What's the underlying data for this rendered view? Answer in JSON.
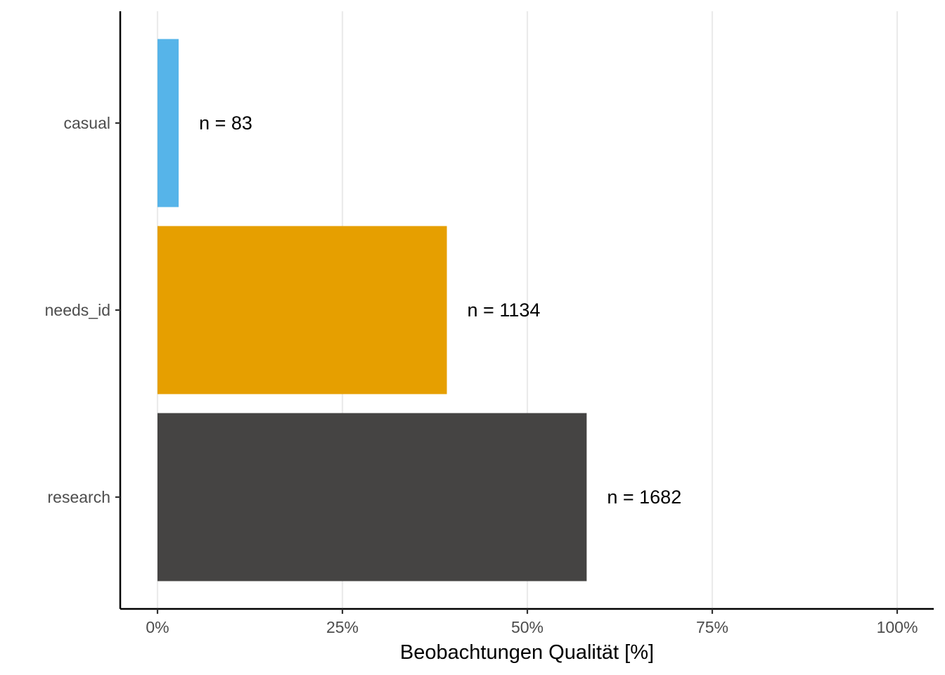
{
  "chart_data": {
    "type": "bar",
    "orientation": "horizontal",
    "categories": [
      "casual",
      "needs_id",
      "research"
    ],
    "values": [
      2.86,
      39.12,
      58.02
    ],
    "data_labels": [
      "n = 83",
      "n = 1134",
      "n = 1682"
    ],
    "colors": [
      "#56B4E9",
      "#E69F00",
      "#454443"
    ],
    "xlabel": "Beobachtungen Qualität [%]",
    "ylabel": "",
    "xlim": [
      0,
      100
    ],
    "x_ticks": [
      0,
      25,
      50,
      75,
      100
    ],
    "x_tick_labels": [
      "0%",
      "25%",
      "50%",
      "75%",
      "100%"
    ],
    "grid": "vertical major gridlines",
    "legend": "none"
  }
}
